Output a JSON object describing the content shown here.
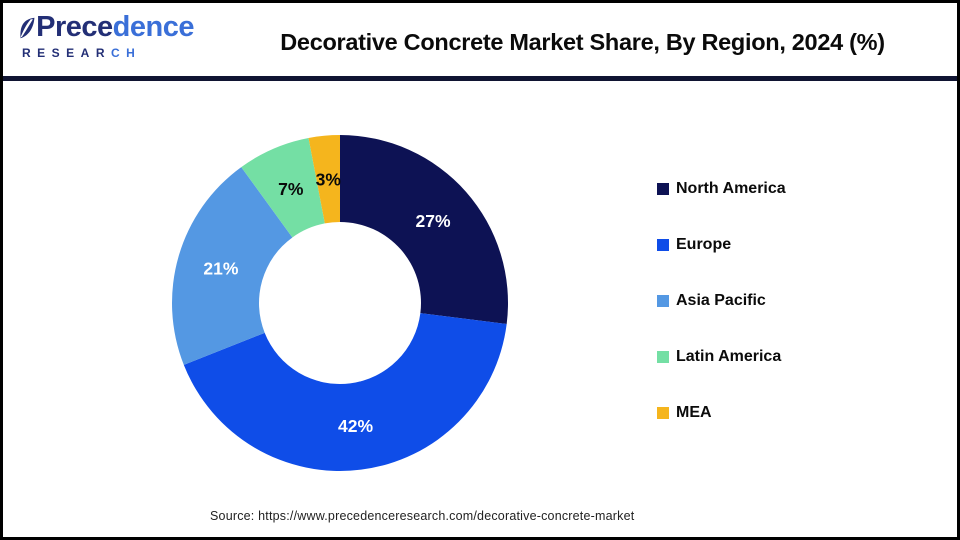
{
  "header": {
    "title": "Decorative Concrete Market Share, By Region, 2024 (%)"
  },
  "logo": {
    "word_dark": "Prece",
    "word_light": "dence",
    "sub_dark": "RESEAR",
    "sub_light": "CH",
    "navy_color": "#232f76",
    "blue_color": "#3a6fd8"
  },
  "chart_data": {
    "type": "pie",
    "subtype": "donut",
    "title": "Decorative Concrete Market Share, By Region, 2024 (%)",
    "categories": [
      "North America",
      "Europe",
      "Asia Pacific",
      "Latin America",
      "MEA"
    ],
    "values": [
      27,
      42,
      21,
      7,
      3
    ],
    "data_labels": [
      "27%",
      "42%",
      "21%",
      "7%",
      "3%"
    ],
    "colors": [
      "#0d1254",
      "#0f4de8",
      "#5498e3",
      "#74dfa4",
      "#f5b51d"
    ],
    "label_text_colors": [
      "#ffffff",
      "#ffffff",
      "#ffffff",
      "#0a0a0a",
      "#0a0a0a"
    ],
    "start_angle_deg": 0,
    "direction": "clockwise",
    "inner_radius_ratio": 0.48,
    "legend_position": "right"
  },
  "footer": {
    "source": "Source: https://www.precedenceresearch.com/decorative-concrete-market"
  }
}
